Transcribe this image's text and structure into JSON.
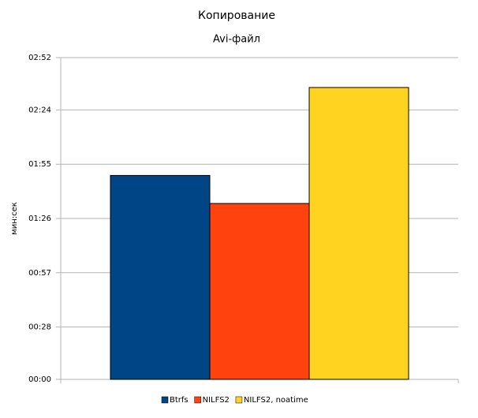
{
  "chart_data": {
    "type": "bar",
    "title": "Копирование",
    "subtitle": "Avi-файл",
    "y_label": "мин:сек",
    "series": [
      {
        "name": "Btrfs",
        "color": "#004586",
        "values": [
          109
        ]
      },
      {
        "name": "NILFS2",
        "color": "#ff420e",
        "values": [
          94
        ]
      },
      {
        "name": "NILFS2, noatime",
        "color": "#ffd320",
        "values": [
          156
        ]
      }
    ],
    "ylim": [
      0,
      172
    ],
    "yticks": [
      {
        "value": 0,
        "label": "00:00"
      },
      {
        "value": 28,
        "label": "00:28"
      },
      {
        "value": 57,
        "label": "00:57"
      },
      {
        "value": 86,
        "label": "01:26"
      },
      {
        "value": 115,
        "label": "01:55"
      },
      {
        "value": 144,
        "label": "02:24"
      },
      {
        "value": 172,
        "label": "02:52"
      }
    ],
    "grid": true,
    "legend": "bottom"
  }
}
